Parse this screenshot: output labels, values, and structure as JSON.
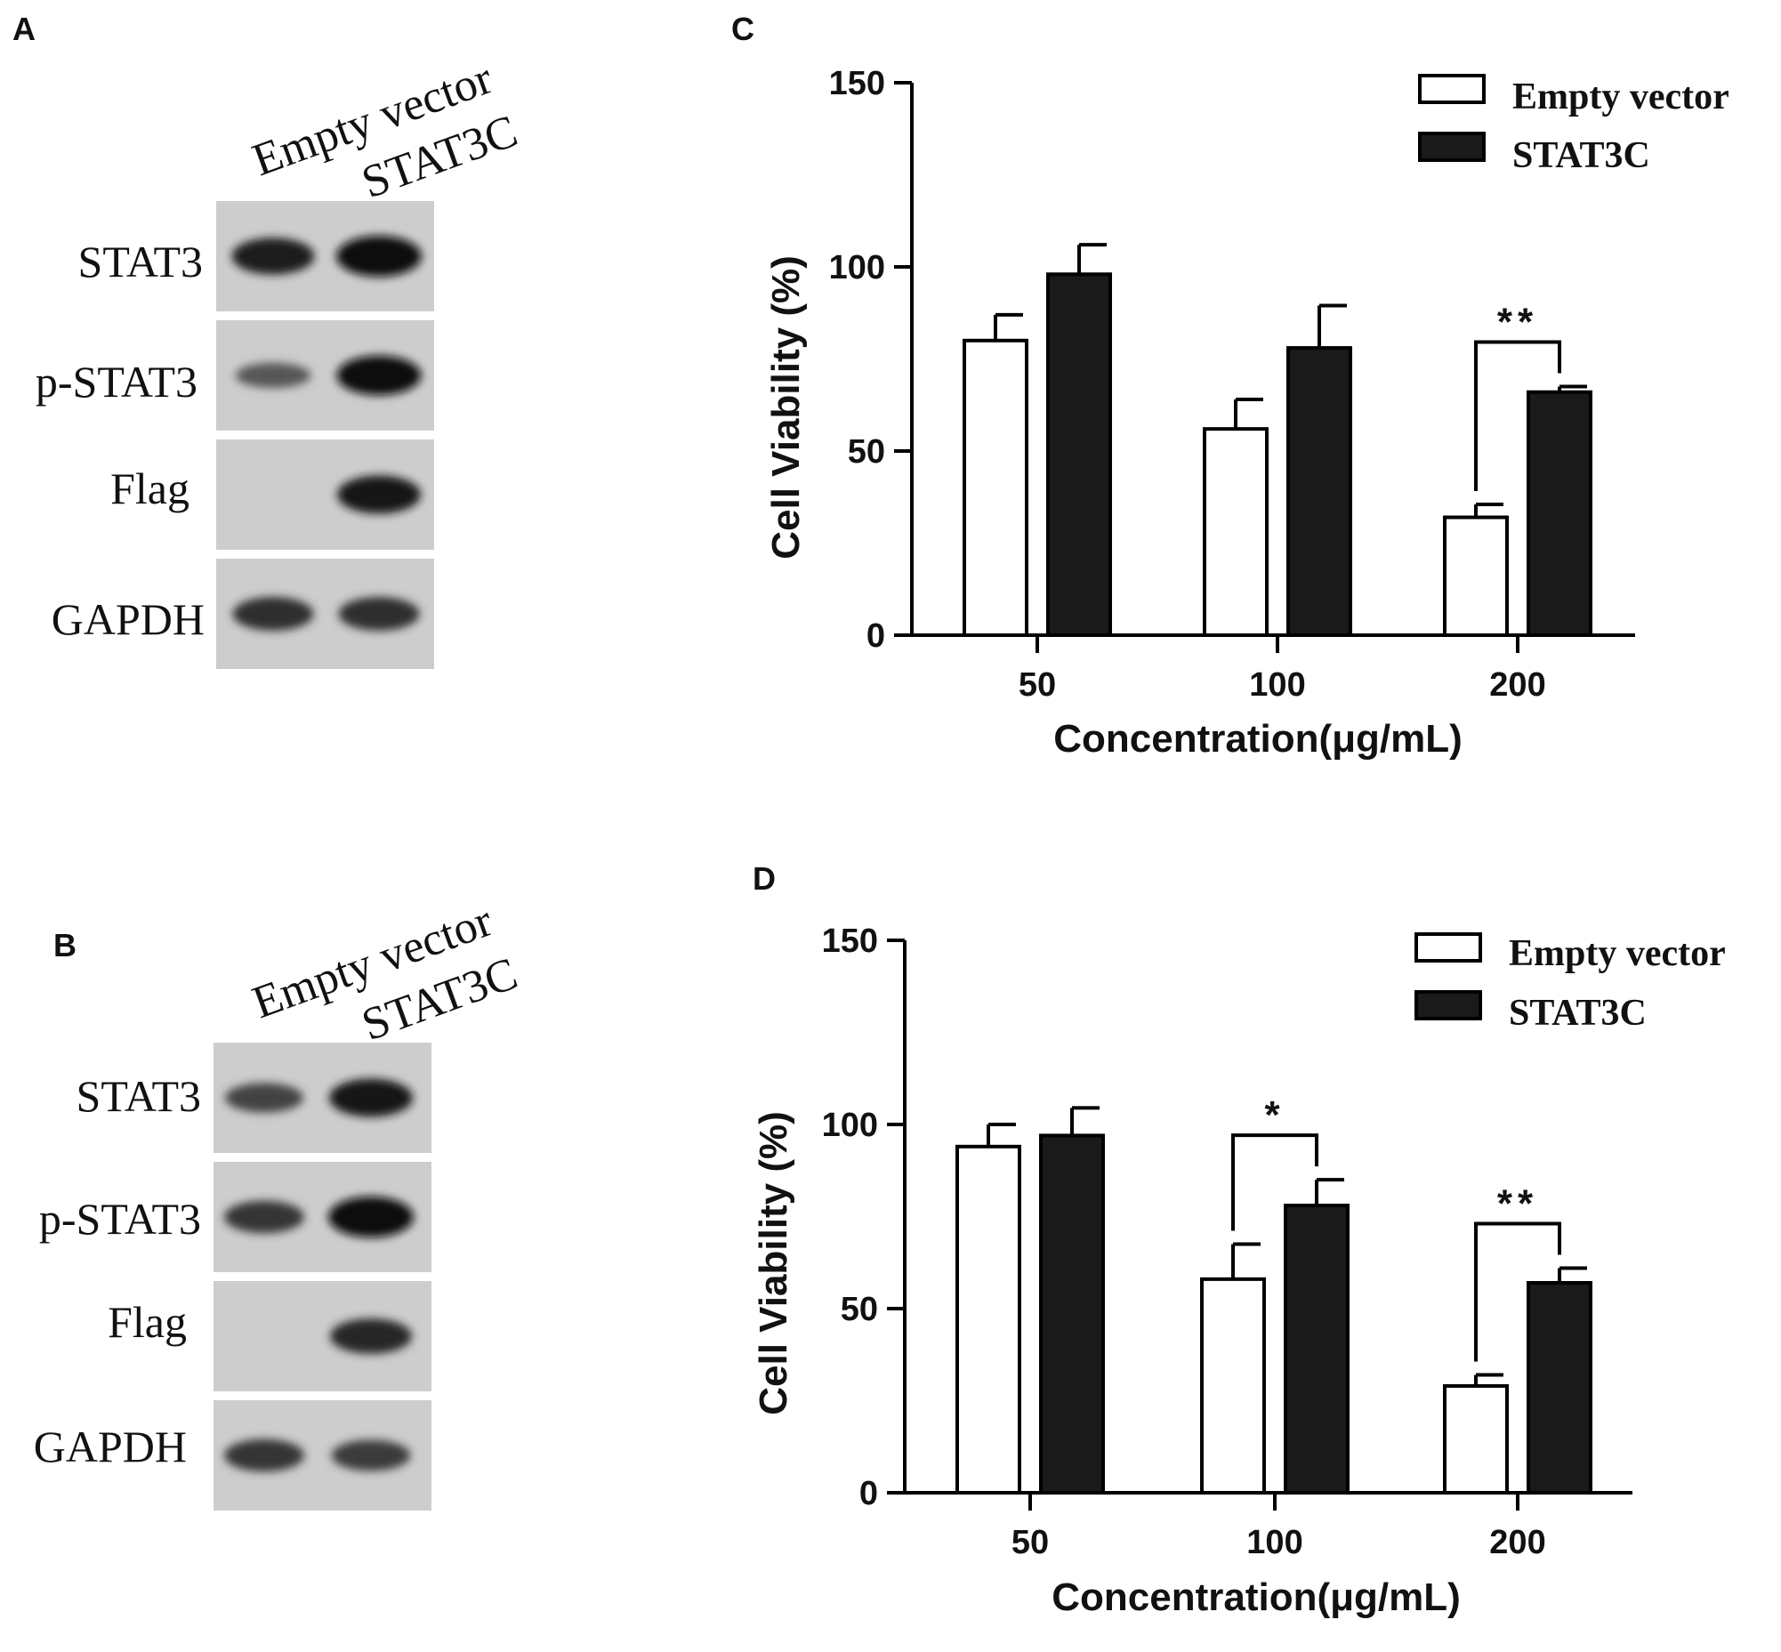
{
  "panels": {
    "A": {
      "letter": "A",
      "lanes": [
        "Empty vector",
        "STAT3C"
      ],
      "blots": [
        {
          "label": "STAT3",
          "bands": [
            0.85,
            1.0
          ]
        },
        {
          "label": "p-STAT3",
          "bands": [
            0.45,
            0.95
          ]
        },
        {
          "label": "Flag",
          "bands": [
            0.0,
            0.9
          ]
        },
        {
          "label": "GAPDH",
          "bands": [
            0.75,
            0.75
          ]
        }
      ]
    },
    "B": {
      "letter": "B",
      "lanes": [
        "Empty vector",
        "STAT3C"
      ],
      "blots": [
        {
          "label": "STAT3",
          "bands": [
            0.6,
            0.9
          ]
        },
        {
          "label": "p-STAT3",
          "bands": [
            0.7,
            1.0
          ]
        },
        {
          "label": "Flag",
          "bands": [
            0.0,
            0.8
          ]
        },
        {
          "label": "GAPDH",
          "bands": [
            0.7,
            0.65
          ]
        }
      ]
    },
    "C": {
      "letter": "C"
    },
    "D": {
      "letter": "D"
    }
  },
  "chart_data": [
    {
      "panel": "C",
      "type": "bar",
      "categories": [
        "50",
        "100",
        "200"
      ],
      "series": [
        {
          "name": "Empty vector",
          "values": [
            80,
            56,
            32
          ],
          "errors": [
            7,
            8,
            3.5
          ],
          "color": "#ffffff"
        },
        {
          "name": "STAT3C",
          "values": [
            98,
            78,
            66
          ],
          "errors": [
            8,
            11.5,
            1.5
          ],
          "color": "#1a1a1a"
        }
      ],
      "xlabel": "Concentration(μg/mL)",
      "ylabel": "Cell Viability (%)",
      "ylim": [
        0,
        150
      ],
      "yticks": [
        0,
        50,
        100,
        150
      ],
      "legend": "top-right",
      "grid": false,
      "significance": [
        {
          "category": "200",
          "label": "**"
        }
      ]
    },
    {
      "panel": "D",
      "type": "bar",
      "categories": [
        "50",
        "100",
        "200"
      ],
      "series": [
        {
          "name": "Empty vector",
          "values": [
            94,
            58,
            29
          ],
          "errors": [
            6,
            9.5,
            3
          ],
          "color": "#ffffff"
        },
        {
          "name": "STAT3C",
          "values": [
            97,
            78,
            57
          ],
          "errors": [
            7.5,
            7,
            4
          ],
          "color": "#1a1a1a"
        }
      ],
      "xlabel": "Concentration(μg/mL)",
      "ylabel": "Cell Viability (%)",
      "ylim": [
        0,
        150
      ],
      "yticks": [
        0,
        50,
        100,
        150
      ],
      "legend": "top-right",
      "grid": false,
      "significance": [
        {
          "category": "100",
          "label": "*"
        },
        {
          "category": "200",
          "label": "**"
        }
      ]
    }
  ]
}
